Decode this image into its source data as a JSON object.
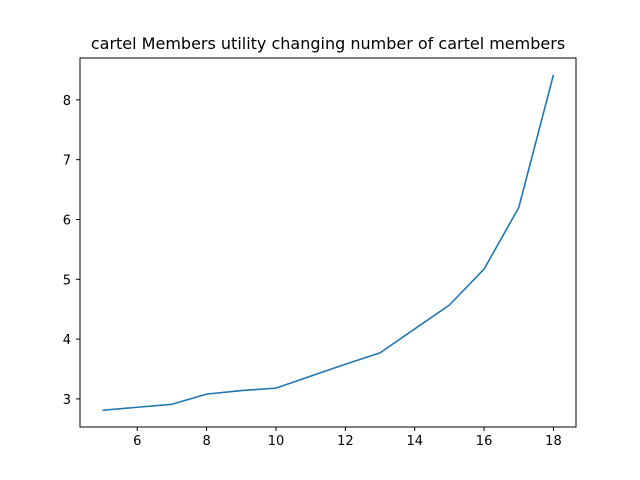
{
  "chart_data": {
    "type": "line",
    "title": "cartel Members utility changing number of cartel members",
    "xlabel": "",
    "ylabel": "",
    "x": [
      5,
      6,
      7,
      8,
      9,
      10,
      11,
      12,
      13,
      14,
      15,
      16,
      17,
      18
    ],
    "series": [
      {
        "values": [
          2.81,
          2.86,
          2.91,
          3.08,
          3.14,
          3.18,
          3.38,
          3.58,
          3.77,
          4.17,
          4.57,
          5.17,
          6.2,
          8.42
        ],
        "color": "#1f77b4"
      }
    ],
    "xlim": [
      4.35,
      18.65
    ],
    "ylim": [
      2.53,
      8.7
    ],
    "xticks": [
      6,
      8,
      10,
      12,
      14,
      16,
      18
    ],
    "yticks": [
      3,
      4,
      5,
      6,
      7,
      8
    ],
    "grid": false,
    "legend": "none"
  }
}
